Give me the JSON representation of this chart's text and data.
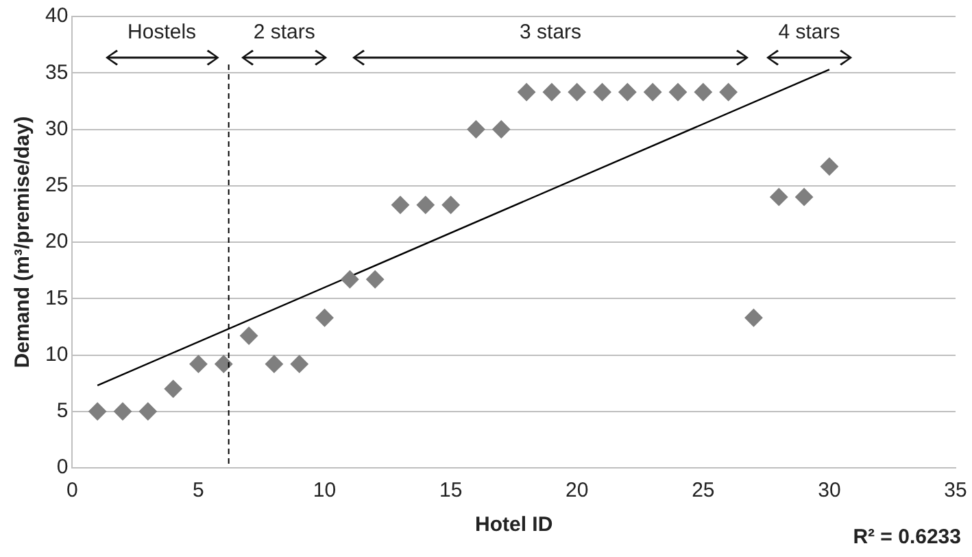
{
  "chart_data": {
    "type": "scatter",
    "xlabel": "Hotel ID",
    "ylabel": "Demand (m³/premise/day)",
    "x": [
      1,
      2,
      3,
      4,
      5,
      6,
      7,
      8,
      9,
      10,
      11,
      12,
      13,
      14,
      15,
      16,
      17,
      18,
      19,
      20,
      21,
      22,
      23,
      24,
      25,
      26,
      27,
      28,
      29,
      30
    ],
    "series": [
      {
        "color": "#7f7f7f",
        "marker": "diamond",
        "values": [
          5,
          5,
          5,
          7,
          9.2,
          9.2,
          11.7,
          9.2,
          9.2,
          13.3,
          16.7,
          16.7,
          23.3,
          23.3,
          23.3,
          30,
          30,
          33.3,
          33.3,
          33.3,
          33.3,
          33.3,
          33.3,
          33.3,
          33.3,
          33.3,
          13.3,
          24,
          24,
          26.7
        ]
      },
      {
        "type": "line",
        "color": "#000000",
        "marker": "none",
        "x": [
          1,
          30
        ],
        "values": [
          7.3,
          35.3
        ]
      }
    ],
    "xlim": [
      0,
      35
    ],
    "xticks": [
      0,
      5,
      10,
      15,
      20,
      25,
      30,
      35
    ],
    "ylim": [
      0,
      40
    ],
    "yticks": [
      0,
      5,
      10,
      15,
      20,
      25,
      30,
      35,
      40
    ],
    "grid": "y",
    "legend": false,
    "ref_lines": [
      {
        "axis": "x",
        "value": 6.2,
        "color": "#000000",
        "line_style": "dashed"
      }
    ],
    "annotations": [
      "Hostels",
      "2 stars",
      "3 stars",
      "4 stars",
      "R² = 0.6233"
    ]
  }
}
